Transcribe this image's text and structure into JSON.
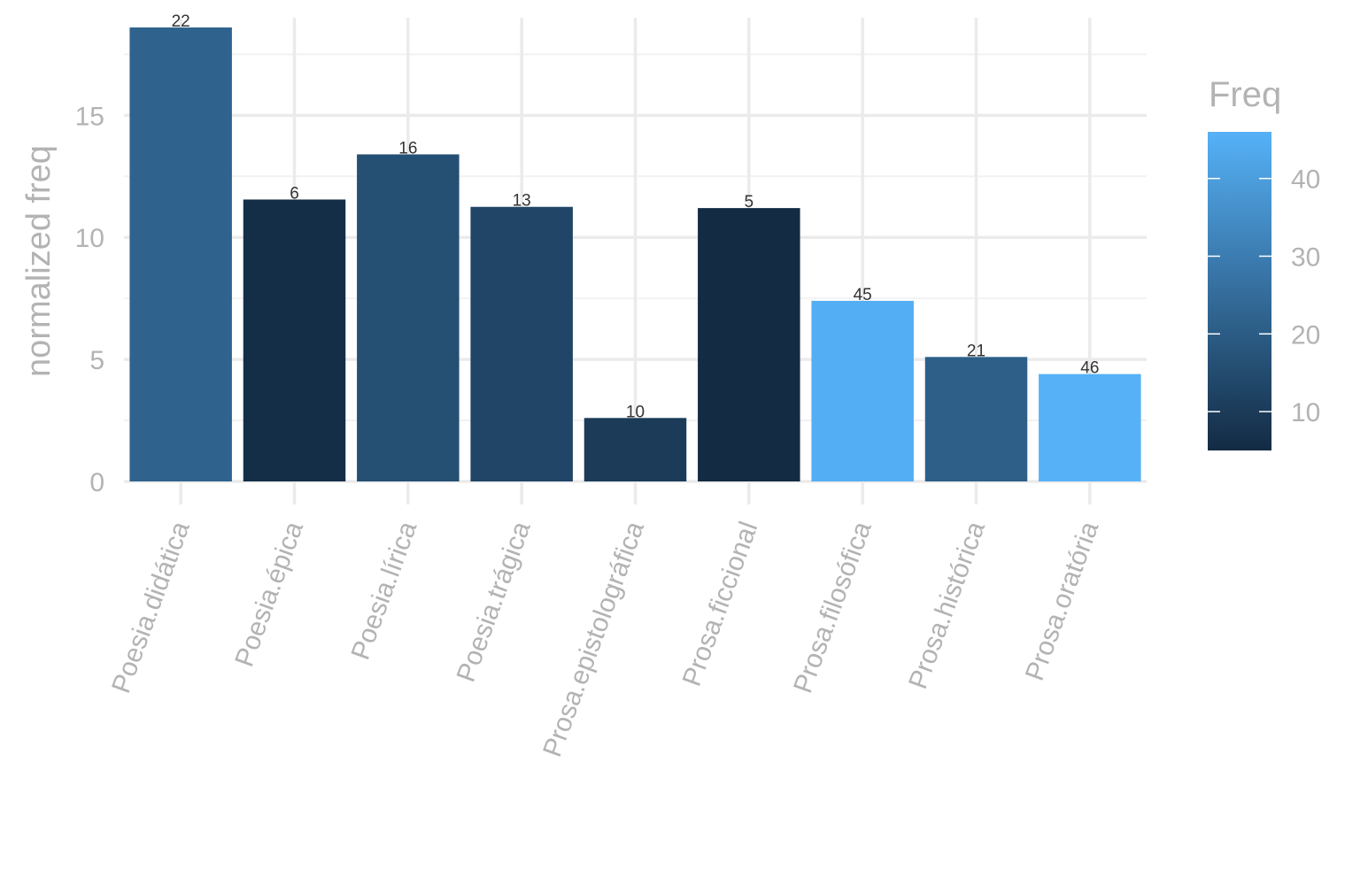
{
  "chart_data": {
    "type": "bar",
    "title": "",
    "xlabel": "",
    "ylabel": "normalized freq",
    "categories": [
      "Poesia.didática",
      "Poesia.épica",
      "Poesia.lírica",
      "Poesia.trágica",
      "Prosa.epistolográfica",
      "Prosa.ficcional",
      "Prosa.filosófica",
      "Prosa.histórica",
      "Prosa.oratória"
    ],
    "values": [
      18.6,
      11.55,
      13.4,
      11.25,
      2.6,
      11.2,
      7.4,
      5.1,
      4.4
    ],
    "fill_values": [
      22,
      6,
      16,
      13,
      10,
      5,
      45,
      21,
      46
    ],
    "bar_labels": [
      "22",
      "6",
      "16",
      "13",
      "10",
      "5",
      "45",
      "21",
      "46"
    ],
    "ylim": [
      0,
      19
    ],
    "yticks": [
      0,
      5,
      10,
      15
    ],
    "ytick_labels": [
      "0",
      "5",
      "10",
      "15"
    ],
    "grid": true,
    "legend": {
      "title": "Freq",
      "position": "right",
      "range": [
        5,
        46
      ],
      "ticks": [
        10,
        20,
        30,
        40
      ],
      "tick_labels": [
        "10",
        "20",
        "30",
        "40"
      ],
      "color_low": "#132B43",
      "color_high": "#56B1F7"
    }
  }
}
